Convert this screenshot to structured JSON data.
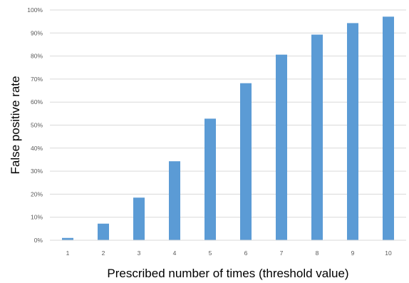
{
  "chart_data": {
    "type": "bar",
    "title": "",
    "xlabel": "Prescribed number of times (threshold value)",
    "ylabel": "False positive rate",
    "categories": [
      "1",
      "2",
      "3",
      "4",
      "5",
      "6",
      "7",
      "8",
      "9",
      "10"
    ],
    "values": [
      1.0,
      7.2,
      18.5,
      34.3,
      52.8,
      68.2,
      80.6,
      89.3,
      94.3,
      97.1
    ],
    "ylim": [
      0,
      100
    ],
    "yticks": [
      "0%",
      "10%",
      "20%",
      "30%",
      "40%",
      "50%",
      "60%",
      "70%",
      "80%",
      "90%",
      "100%"
    ],
    "grid": true,
    "legend": "none",
    "bar_color": "#5B9BD5",
    "grid_color": "#D9D9D9"
  }
}
